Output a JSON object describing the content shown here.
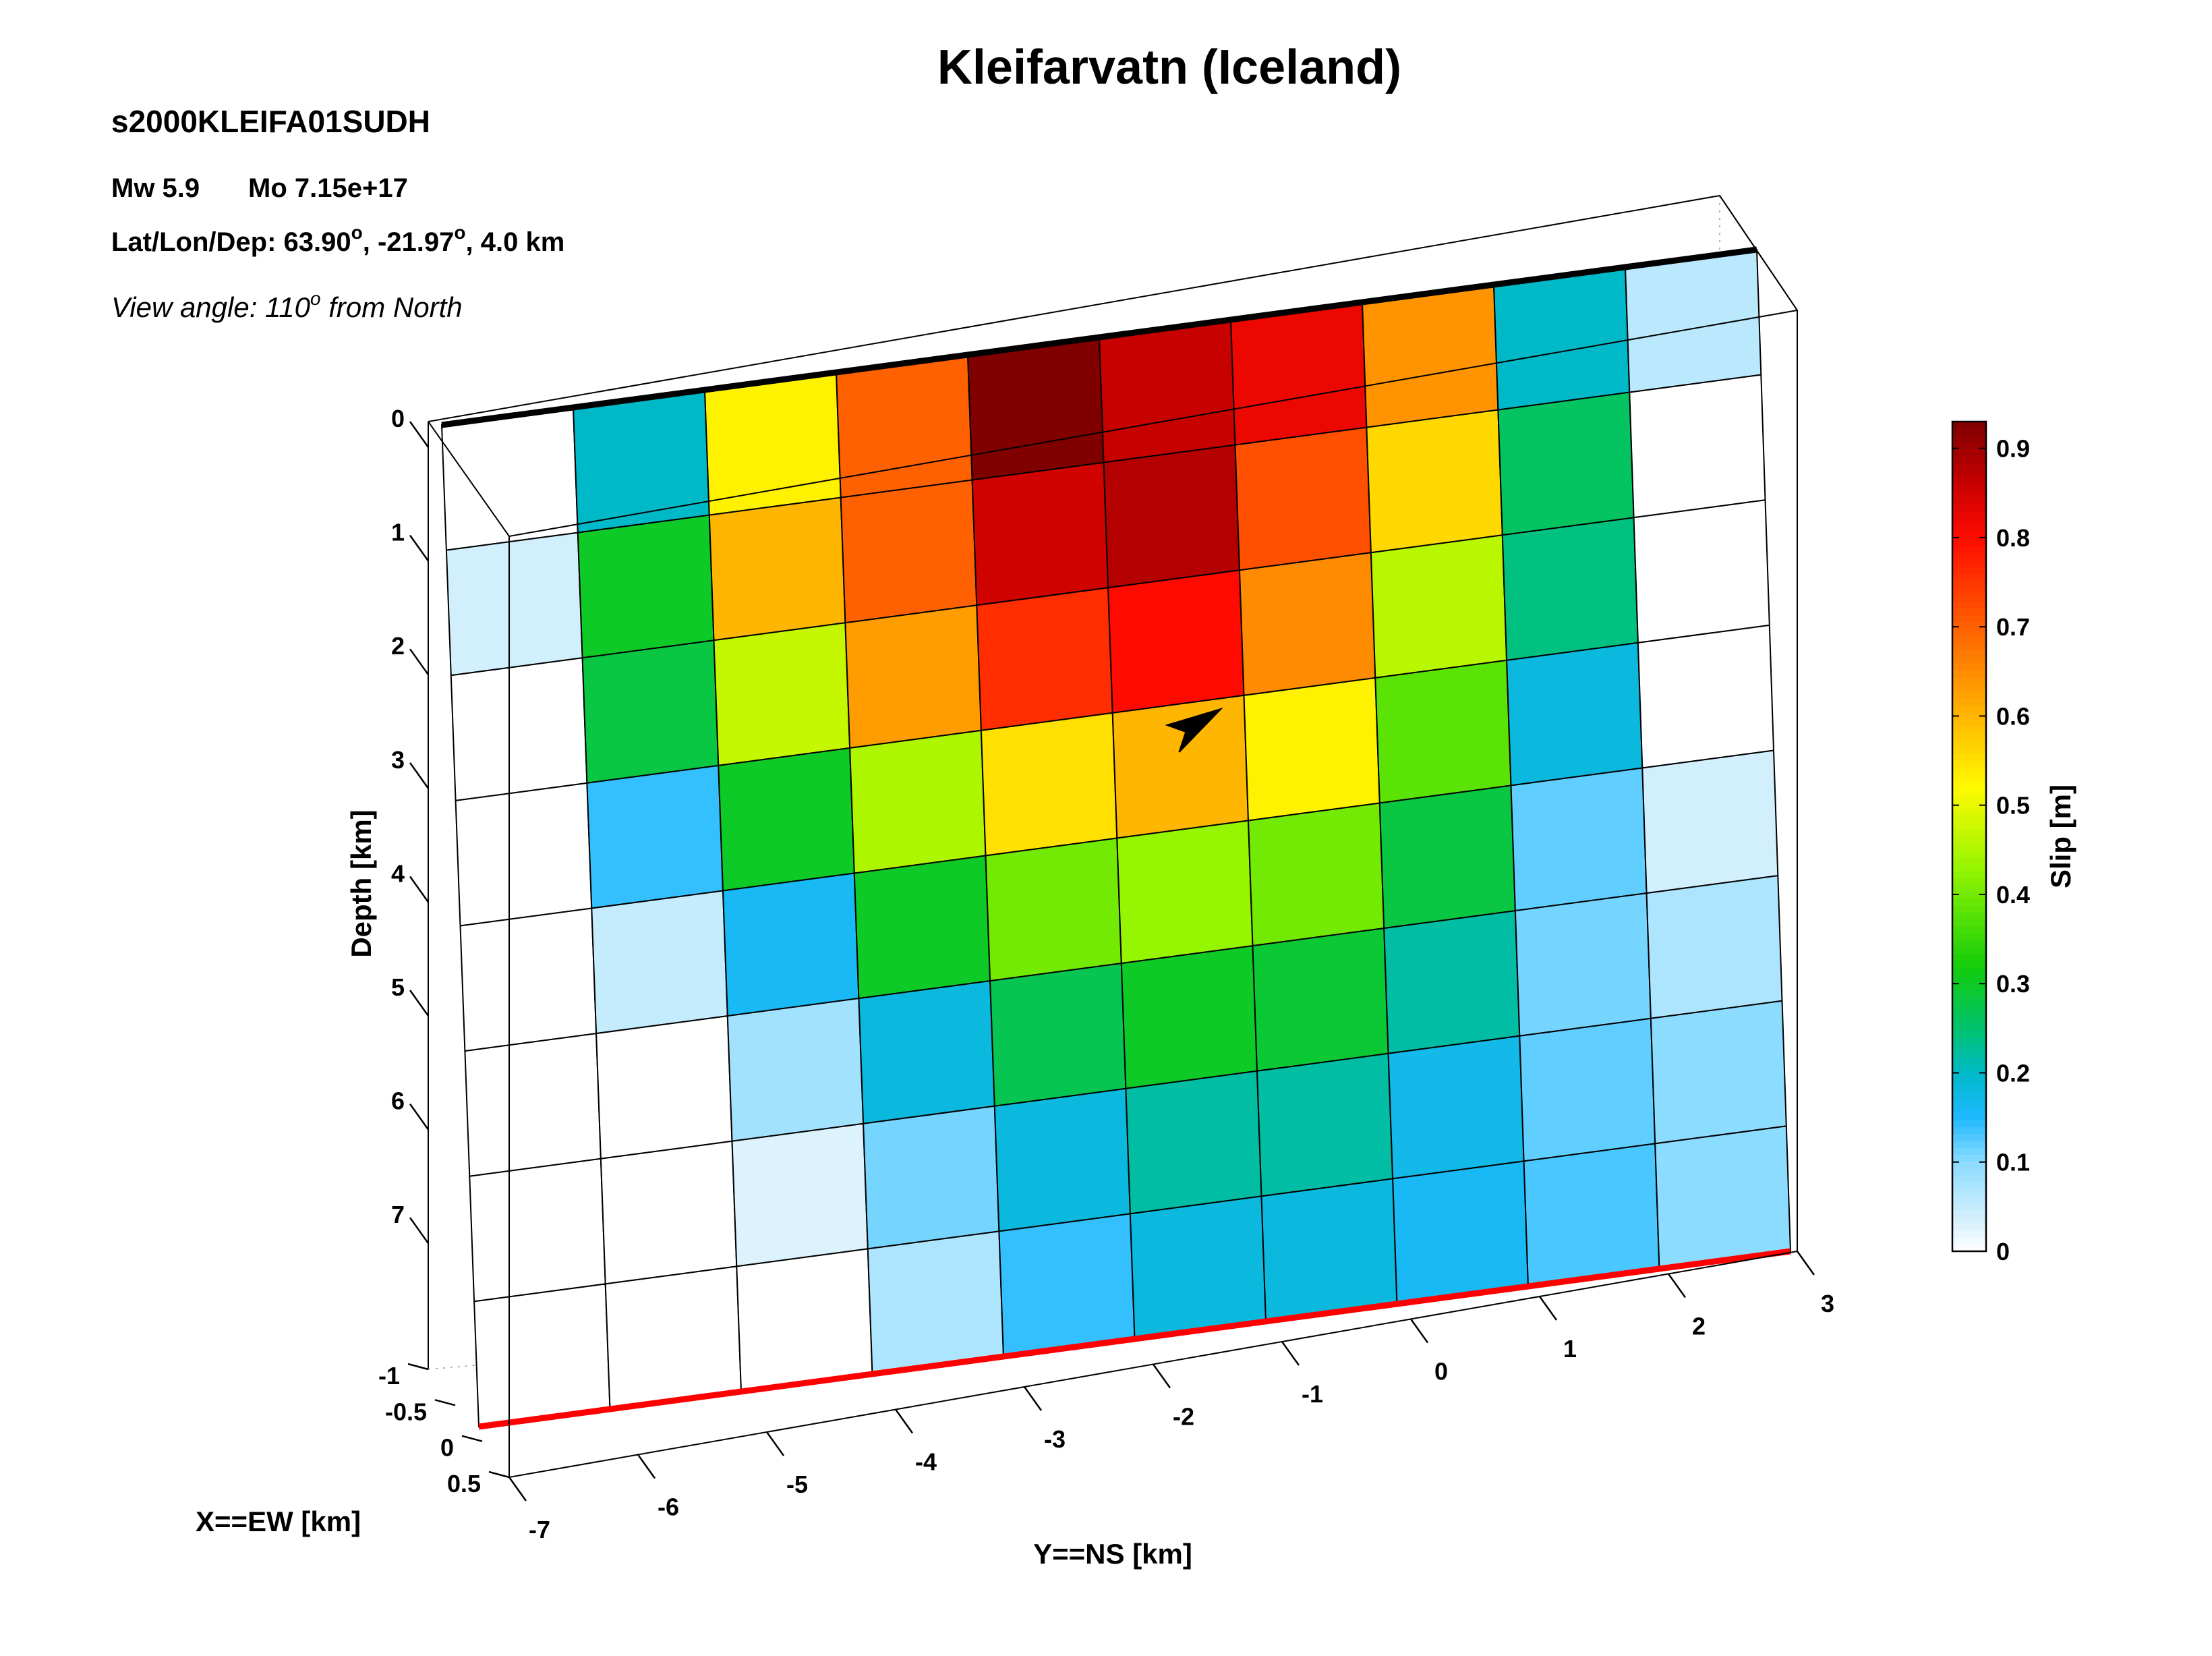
{
  "header": {
    "title": "Kleifarvatn (Iceland)",
    "event_id": "s2000KLEIFA01SUDH",
    "mw_label": "Mw 5.9",
    "mo_label": "Mo 7.15e+17",
    "location_prefix": "Lat/Lon/Dep: 63.90",
    "location_lon": ", -21.97",
    "location_suffix": ", 4.0 km",
    "degree_glyph": "o",
    "view_prefix": "View angle: 110",
    "view_suffix": " from North"
  },
  "chart_data": {
    "type": "heatmap",
    "title": "Kleifarvatn (Iceland)",
    "xlabel": "Y==NS [km]",
    "ylabel": "Depth [km]",
    "zlabel": "X==EW [km]",
    "colorbar_label": "Slip [m]",
    "slip_range": [
      0,
      0.93
    ],
    "ns_ticks": [
      "-7",
      "-6",
      "-5",
      "-4",
      "-3",
      "-2",
      "-1",
      "0",
      "1",
      "2",
      "3"
    ],
    "depth_ticks": [
      "0",
      "1",
      "2",
      "3",
      "4",
      "5",
      "6",
      "7"
    ],
    "ew_ticks": [
      "-1",
      "-0.5",
      "0",
      "0.5"
    ],
    "colorbar_ticks": [
      "0",
      "0.1",
      "0.2",
      "0.3",
      "0.4",
      "0.5",
      "0.6",
      "0.7",
      "0.8",
      "0.9"
    ],
    "ylim_depth": [
      0,
      8
    ],
    "xlim_ns": [
      -7,
      3
    ],
    "n_along_strike": 10,
    "n_down_dip": 8,
    "hypocenter": {
      "ns_km": -1.5,
      "depth_km": 3.2
    },
    "top_edge_color": "#000000",
    "bottom_edge_color": "#ff0000",
    "slip": [
      [
        0.0,
        0.2,
        0.53,
        0.7,
        0.93,
        0.86,
        0.82,
        0.64,
        0.2,
        0.06
      ],
      [
        0.04,
        0.3,
        0.6,
        0.7,
        0.85,
        0.88,
        0.72,
        0.56,
        0.26,
        0.0
      ],
      [
        0.0,
        0.28,
        0.47,
        0.63,
        0.76,
        0.8,
        0.65,
        0.46,
        0.24,
        0.0
      ],
      [
        0.0,
        0.14,
        0.3,
        0.45,
        0.55,
        0.6,
        0.53,
        0.38,
        0.18,
        0.0
      ],
      [
        0.0,
        0.05,
        0.16,
        0.3,
        0.4,
        0.43,
        0.4,
        0.28,
        0.12,
        0.04
      ],
      [
        0.0,
        0.0,
        0.08,
        0.18,
        0.27,
        0.3,
        0.29,
        0.22,
        0.11,
        0.07
      ],
      [
        0.0,
        0.0,
        0.03,
        0.11,
        0.18,
        0.22,
        0.22,
        0.17,
        0.12,
        0.1
      ],
      [
        0.0,
        0.0,
        0.0,
        0.07,
        0.14,
        0.18,
        0.18,
        0.16,
        0.13,
        0.1
      ]
    ]
  }
}
